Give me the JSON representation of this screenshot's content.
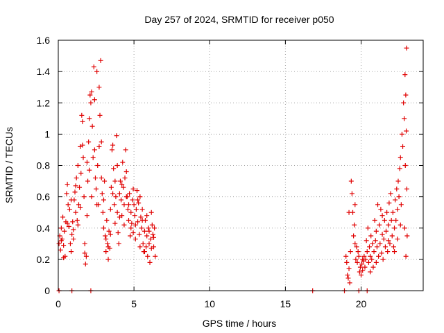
{
  "chart_data": {
    "type": "scatter",
    "title": "Day 257 of 2024, SRMTID for receiver p050",
    "xlabel": "GPS time / hours",
    "ylabel": "SRMTID / TECUs",
    "xlim": [
      0,
      24.1
    ],
    "ylim": [
      0,
      1.6
    ],
    "x_ticks": [
      0,
      5,
      10,
      15,
      20
    ],
    "x_tick_labels": [
      "0",
      "5",
      "10",
      "15",
      "20"
    ],
    "y_ticks": [
      0,
      0.2,
      0.4,
      0.6,
      0.8,
      1.0,
      1.2,
      1.4,
      1.6
    ],
    "y_tick_labels": [
      "0",
      "0.2",
      "0.4",
      "0.6",
      "0.8",
      "1",
      "1.2",
      "1.4",
      "1.6"
    ],
    "grid": true,
    "marker": "+",
    "color": "#e00000",
    "series": [
      {
        "name": "SRMTID",
        "points": [
          [
            0.05,
            0.3
          ],
          [
            0.1,
            0.35
          ],
          [
            0.15,
            0.26
          ],
          [
            0.2,
            0.4
          ],
          [
            0.25,
            0.33
          ],
          [
            0.3,
            0.47
          ],
          [
            0.35,
            0.29
          ],
          [
            0.4,
            0.38
          ],
          [
            0.45,
            0.22
          ],
          [
            0.5,
            0.44
          ],
          [
            0.55,
            0.62
          ],
          [
            0.6,
            0.68
          ],
          [
            0.65,
            0.55
          ],
          [
            0.7,
            0.41
          ],
          [
            0.75,
            0.52
          ],
          [
            0.8,
            0.3
          ],
          [
            0.85,
            0.25
          ],
          [
            0.9,
            0.36
          ],
          [
            0.95,
            0.44
          ],
          [
            1.0,
            0.39
          ],
          [
            1.05,
            0.58
          ],
          [
            1.1,
            0.63
          ],
          [
            1.15,
            0.5
          ],
          [
            1.2,
            0.72
          ],
          [
            1.25,
            0.45
          ],
          [
            1.3,
            0.8
          ],
          [
            1.35,
            0.55
          ],
          [
            1.4,
            0.66
          ],
          [
            1.45,
            0.92
          ],
          [
            1.5,
            0.75
          ],
          [
            1.55,
            1.12
          ],
          [
            1.6,
            1.08
          ],
          [
            1.65,
            0.85
          ],
          [
            1.7,
            0.6
          ],
          [
            1.75,
            0.3
          ],
          [
            1.8,
            0.17
          ],
          [
            1.85,
            0.22
          ],
          [
            1.9,
            0.48
          ],
          [
            1.95,
            0.7
          ],
          [
            2.0,
            0.95
          ],
          [
            2.05,
            1.1
          ],
          [
            2.1,
            1.25
          ],
          [
            2.15,
            1.2
          ],
          [
            2.2,
            1.27
          ],
          [
            2.25,
            1.05
          ],
          [
            2.3,
            0.85
          ],
          [
            2.35,
            1.43
          ],
          [
            2.4,
            0.9
          ],
          [
            2.45,
            0.72
          ],
          [
            2.5,
            0.65
          ],
          [
            2.55,
            1.4
          ],
          [
            2.6,
            0.8
          ],
          [
            2.65,
            0.55
          ],
          [
            2.7,
            1.3
          ],
          [
            2.75,
            1.12
          ],
          [
            2.8,
            1.47
          ],
          [
            2.85,
            0.95
          ],
          [
            2.9,
            0.62
          ],
          [
            2.95,
            0.5
          ],
          [
            3.0,
            0.4
          ],
          [
            3.05,
            0.7
          ],
          [
            3.1,
            0.35
          ],
          [
            3.15,
            0.25
          ],
          [
            3.2,
            0.45
          ],
          [
            3.25,
            0.3
          ],
          [
            3.3,
            0.2
          ],
          [
            3.35,
            0.38
          ],
          [
            3.4,
            0.27
          ],
          [
            3.45,
            0.52
          ],
          [
            3.5,
            0.66
          ],
          [
            3.55,
            0.9
          ],
          [
            3.6,
            0.93
          ],
          [
            3.65,
            0.78
          ],
          [
            3.7,
            0.55
          ],
          [
            3.75,
            0.43
          ],
          [
            3.8,
            0.6
          ],
          [
            3.85,
            0.99
          ],
          [
            3.9,
            0.5
          ],
          [
            3.95,
            0.37
          ],
          [
            4.0,
            0.3
          ],
          [
            4.05,
            0.62
          ],
          [
            4.1,
            0.7
          ],
          [
            4.15,
            0.58
          ],
          [
            4.2,
            0.48
          ],
          [
            4.25,
            0.82
          ],
          [
            4.3,
            0.66
          ],
          [
            4.35,
            0.55
          ],
          [
            4.4,
            0.72
          ],
          [
            4.45,
            0.9
          ],
          [
            4.5,
            0.76
          ],
          [
            4.55,
            0.6
          ],
          [
            4.6,
            0.52
          ],
          [
            4.65,
            0.45
          ],
          [
            4.7,
            0.62
          ],
          [
            4.75,
            0.35
          ],
          [
            4.8,
            0.5
          ],
          [
            4.85,
            0.43
          ],
          [
            4.9,
            0.58
          ],
          [
            4.95,
            0.37
          ],
          [
            5.0,
            0.55
          ],
          [
            5.05,
            0.48
          ],
          [
            5.1,
            0.33
          ],
          [
            5.15,
            0.52
          ],
          [
            5.2,
            0.64
          ],
          [
            5.25,
            0.44
          ],
          [
            5.3,
            0.56
          ],
          [
            5.35,
            0.36
          ],
          [
            5.4,
            0.6
          ],
          [
            5.45,
            0.47
          ],
          [
            5.5,
            0.4
          ],
          [
            5.55,
            0.52
          ],
          [
            5.6,
            0.3
          ],
          [
            5.65,
            0.25
          ],
          [
            5.7,
            0.38
          ],
          [
            5.75,
            0.45
          ],
          [
            5.8,
            0.28
          ],
          [
            5.85,
            0.35
          ],
          [
            5.9,
            0.22
          ],
          [
            5.95,
            0.4
          ],
          [
            6.0,
            0.3
          ],
          [
            6.05,
            0.18
          ],
          [
            6.1,
            0.33
          ],
          [
            6.15,
            0.5
          ],
          [
            6.2,
            0.42
          ],
          [
            6.25,
            0.36
          ],
          [
            6.3,
            0.28
          ],
          [
            6.35,
            0.4
          ],
          [
            6.4,
            0.22
          ],
          [
            0.2,
            0.32
          ],
          [
            0.35,
            0.21
          ],
          [
            0.6,
            0.43
          ],
          [
            0.85,
            0.58
          ],
          [
            1.0,
            0.33
          ],
          [
            1.15,
            0.67
          ],
          [
            1.3,
            0.42
          ],
          [
            1.45,
            0.53
          ],
          [
            1.6,
            0.93
          ],
          [
            1.75,
            0.24
          ],
          [
            1.9,
            0.82
          ],
          [
            2.05,
            0.77
          ],
          [
            2.2,
            0.6
          ],
          [
            2.4,
            1.22
          ],
          [
            2.55,
            0.55
          ],
          [
            2.7,
            0.92
          ],
          [
            2.85,
            0.72
          ],
          [
            3.0,
            0.58
          ],
          [
            3.15,
            0.33
          ],
          [
            3.3,
            0.28
          ],
          [
            3.45,
            0.36
          ],
          [
            3.6,
            0.62
          ],
          [
            3.75,
            0.7
          ],
          [
            3.9,
            0.8
          ],
          [
            4.05,
            0.47
          ],
          [
            4.2,
            0.68
          ],
          [
            4.35,
            0.42
          ],
          [
            4.5,
            0.6
          ],
          [
            4.65,
            0.55
          ],
          [
            4.8,
            0.4
          ],
          [
            4.95,
            0.65
          ],
          [
            5.1,
            0.42
          ],
          [
            5.25,
            0.58
          ],
          [
            5.4,
            0.28
          ],
          [
            5.55,
            0.45
          ],
          [
            5.7,
            0.25
          ],
          [
            5.85,
            0.48
          ],
          [
            6.0,
            0.38
          ],
          [
            6.15,
            0.27
          ],
          [
            6.3,
            0.34
          ],
          [
            0.05,
            0.0
          ],
          [
            0.9,
            0.0
          ],
          [
            2.15,
            0.0
          ],
          [
            16.8,
            0.0
          ],
          [
            18.9,
            0.0
          ],
          [
            19.85,
            0.0
          ],
          [
            20.4,
            0.0
          ],
          [
            19.0,
            0.22
          ],
          [
            19.05,
            0.18
          ],
          [
            19.1,
            0.1
          ],
          [
            19.15,
            0.08
          ],
          [
            19.2,
            0.14
          ],
          [
            19.25,
            0.05
          ],
          [
            19.3,
            0.25
          ],
          [
            19.35,
            0.7
          ],
          [
            19.4,
            0.62
          ],
          [
            19.45,
            0.5
          ],
          [
            19.5,
            0.35
          ],
          [
            19.55,
            0.42
          ],
          [
            19.6,
            0.3
          ],
          [
            19.65,
            0.2
          ],
          [
            19.7,
            0.28
          ],
          [
            19.75,
            0.18
          ],
          [
            19.8,
            0.25
          ],
          [
            19.85,
            0.22
          ],
          [
            19.9,
            0.12
          ],
          [
            19.95,
            0.15
          ],
          [
            20.0,
            0.1
          ],
          [
            20.05,
            0.17
          ],
          [
            20.1,
            0.13
          ],
          [
            20.15,
            0.19
          ],
          [
            20.2,
            0.22
          ],
          [
            20.25,
            0.15
          ],
          [
            20.3,
            0.2
          ],
          [
            20.35,
            0.32
          ],
          [
            20.4,
            0.25
          ],
          [
            20.45,
            0.4
          ],
          [
            20.5,
            0.18
          ],
          [
            20.55,
            0.28
          ],
          [
            20.6,
            0.22
          ],
          [
            20.65,
            0.35
          ],
          [
            20.7,
            0.2
          ],
          [
            20.75,
            0.3
          ],
          [
            20.8,
            0.15
          ],
          [
            20.85,
            0.25
          ],
          [
            20.9,
            0.45
          ],
          [
            20.95,
            0.32
          ],
          [
            21.0,
            0.38
          ],
          [
            21.05,
            0.28
          ],
          [
            21.1,
            0.55
          ],
          [
            21.15,
            0.22
          ],
          [
            21.2,
            0.42
          ],
          [
            21.25,
            0.3
          ],
          [
            21.3,
            0.52
          ],
          [
            21.35,
            0.24
          ],
          [
            21.4,
            0.36
          ],
          [
            21.45,
            0.2
          ],
          [
            21.5,
            0.33
          ],
          [
            21.55,
            0.45
          ],
          [
            21.6,
            0.28
          ],
          [
            21.65,
            0.38
          ],
          [
            21.7,
            0.5
          ],
          [
            21.75,
            0.25
          ],
          [
            21.8,
            0.42
          ],
          [
            21.85,
            0.56
          ],
          [
            21.9,
            0.3
          ],
          [
            21.95,
            0.62
          ],
          [
            22.0,
            0.45
          ],
          [
            22.05,
            0.35
          ],
          [
            22.1,
            0.5
          ],
          [
            22.15,
            0.28
          ],
          [
            22.2,
            0.4
          ],
          [
            22.25,
            0.58
          ],
          [
            22.3,
            0.45
          ],
          [
            22.35,
            0.65
          ],
          [
            22.4,
            0.52
          ],
          [
            22.45,
            0.7
          ],
          [
            22.5,
            0.6
          ],
          [
            22.55,
            0.78
          ],
          [
            22.6,
            0.85
          ],
          [
            22.65,
            0.55
          ],
          [
            22.7,
            1.0
          ],
          [
            22.75,
            0.92
          ],
          [
            22.8,
            1.2
          ],
          [
            22.85,
            1.1
          ],
          [
            22.9,
            1.38
          ],
          [
            22.95,
            1.25
          ],
          [
            23.0,
            1.55
          ],
          [
            22.98,
            1.02
          ],
          [
            22.92,
            0.8
          ],
          [
            23.02,
            0.65
          ],
          [
            22.88,
            0.4
          ],
          [
            22.96,
            0.22
          ],
          [
            23.04,
            0.35
          ],
          [
            19.2,
            0.5
          ],
          [
            19.6,
            0.55
          ],
          [
            20.1,
            0.2
          ],
          [
            20.6,
            0.12
          ],
          [
            21.0,
            0.18
          ],
          [
            21.4,
            0.48
          ],
          [
            21.8,
            0.32
          ],
          [
            22.2,
            0.25
          ],
          [
            22.4,
            0.33
          ],
          [
            22.6,
            0.42
          ]
        ]
      }
    ]
  }
}
